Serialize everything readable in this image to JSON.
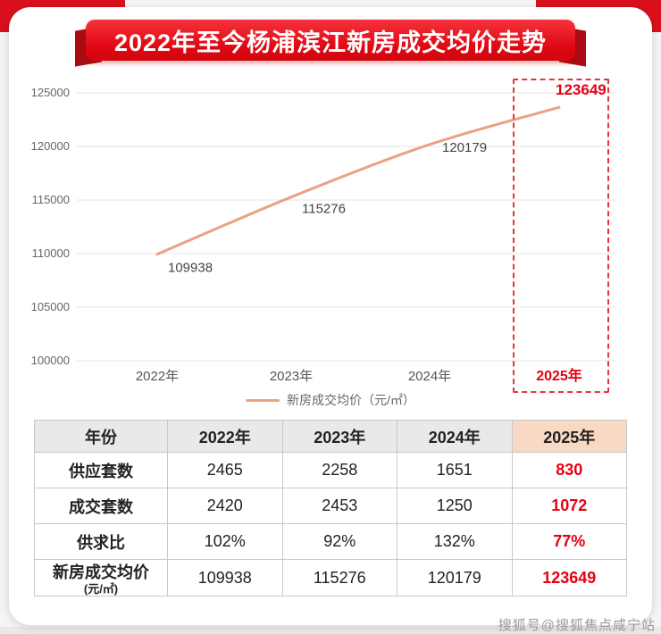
{
  "banner": {
    "title": "2022年至今杨浦滨江新房成交均价走势"
  },
  "chart_data": {
    "type": "line",
    "categories": [
      "2022年",
      "2023年",
      "2024年",
      "2025年"
    ],
    "values": [
      109938,
      115276,
      120179,
      123649
    ],
    "ylim": [
      100000,
      125000
    ],
    "yticks": [
      100000,
      105000,
      110000,
      115000,
      120000,
      125000
    ],
    "legend": "新房成交均价（元/㎡）",
    "line_color": "#EBA184",
    "grid": true,
    "legend_position": "bottom",
    "highlight_index": 3,
    "highlight_color": "#E60012",
    "highlight_style": "dashed-red-box-around-2025"
  },
  "table": {
    "header": [
      "年份",
      "2022年",
      "2023年",
      "2024年",
      "2025年"
    ],
    "highlight_column": 4,
    "rows": [
      {
        "label": "供应套数",
        "values": [
          "2465",
          "2258",
          "1651",
          "830"
        ]
      },
      {
        "label": "成交套数",
        "values": [
          "2420",
          "2453",
          "1250",
          "1072"
        ]
      },
      {
        "label": "供求比",
        "values": [
          "102%",
          "92%",
          "132%",
          "77%"
        ]
      },
      {
        "label": "新房成交均价",
        "label_sub": "(元/㎡)",
        "values": [
          "109938",
          "115276",
          "120179",
          "123649"
        ]
      }
    ]
  },
  "watermark": "搜狐号@搜狐焦点咸宁站",
  "colors": {
    "banner_red": "#E60012",
    "banner_dark_red": "#A90D13",
    "corner_red": "#D9101C",
    "line_salmon": "#EBA184",
    "highlight_red": "#E60012",
    "header_gray": "#E9E9E9",
    "header_peach": "#F9D9C3",
    "grid_gray": "#E4E4E4"
  }
}
